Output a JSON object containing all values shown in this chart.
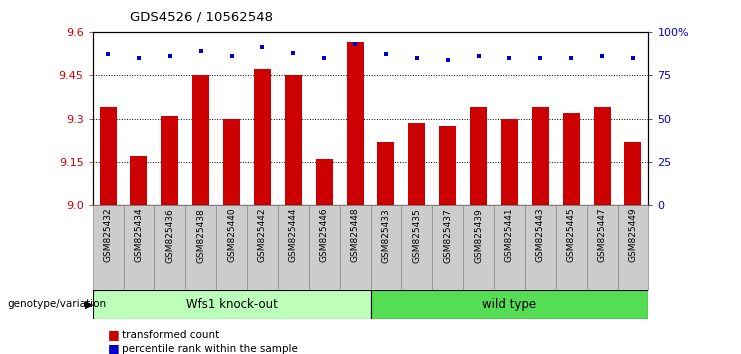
{
  "title": "GDS4526 / 10562548",
  "samples": [
    "GSM825432",
    "GSM825434",
    "GSM825436",
    "GSM825438",
    "GSM825440",
    "GSM825442",
    "GSM825444",
    "GSM825446",
    "GSM825448",
    "GSM825433",
    "GSM825435",
    "GSM825437",
    "GSM825439",
    "GSM825441",
    "GSM825443",
    "GSM825445",
    "GSM825447",
    "GSM825449"
  ],
  "bar_values": [
    9.34,
    9.17,
    9.31,
    9.45,
    9.3,
    9.47,
    9.45,
    9.16,
    9.565,
    9.22,
    9.285,
    9.275,
    9.34,
    9.3,
    9.34,
    9.32,
    9.34,
    9.22
  ],
  "percentile_values": [
    87,
    85,
    86,
    89,
    86,
    91,
    88,
    85,
    93,
    87,
    85,
    84,
    86,
    85,
    85,
    85,
    86,
    85
  ],
  "bar_color": "#cc0000",
  "dot_color": "#0000cc",
  "ymin": 9.0,
  "ymax": 9.6,
  "yticks": [
    9.0,
    9.15,
    9.3,
    9.45,
    9.6
  ],
  "right_yticks": [
    0,
    25,
    50,
    75,
    100
  ],
  "right_yticklabels": [
    "0",
    "25",
    "50",
    "75",
    "100%"
  ],
  "group1_label": "Wfs1 knock-out",
  "group2_label": "wild type",
  "group1_color": "#bbffbb",
  "group2_color": "#55dd55",
  "group1_count": 9,
  "group2_count": 9,
  "xlabel_left": "genotype/variation",
  "legend_red": "transformed count",
  "legend_blue": "percentile rank within the sample",
  "bar_width": 0.55,
  "background_color": "#ffffff",
  "tick_label_bg": "#cccccc"
}
